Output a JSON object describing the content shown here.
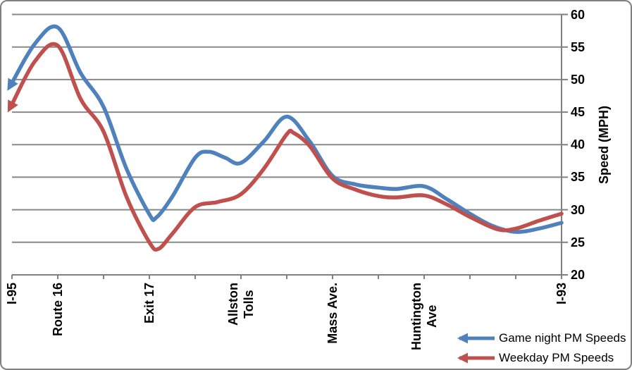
{
  "chart_data": {
    "type": "line",
    "title": "",
    "xlabel": "",
    "ylabel": "Speed (MPH)",
    "ylim": [
      20,
      60
    ],
    "y_ticks": [
      60,
      55,
      50,
      45,
      40,
      35,
      30,
      25,
      20
    ],
    "x_tick_count": 13,
    "x_unit": "tick_index",
    "x_ticks": [
      {
        "pos": 0,
        "label": "I-95"
      },
      {
        "pos": 1,
        "label": "Route 16"
      },
      {
        "pos": 3,
        "label": "Exit 17"
      },
      {
        "pos": 5,
        "label": "Allston\nTolls"
      },
      {
        "pos": 7,
        "label": "Mass Ave."
      },
      {
        "pos": 9,
        "label": "Huntington\nAve"
      },
      {
        "pos": 12,
        "label": "I-93"
      }
    ],
    "grid": "horizontal",
    "legend_position": "bottom-right",
    "line_style": "smooth",
    "arrow_at_line_start": true,
    "series": [
      {
        "name": "Game night PM Speeds",
        "color": "#4F81BD",
        "points": [
          [
            0,
            49.5
          ],
          [
            0.5,
            55.5
          ],
          [
            1,
            58
          ],
          [
            1.5,
            51
          ],
          [
            2,
            45.8
          ],
          [
            2.5,
            36.3
          ],
          [
            3,
            29.3
          ],
          [
            3.15,
            28.8
          ],
          [
            3.5,
            32
          ],
          [
            4,
            38
          ],
          [
            4.3,
            38.9
          ],
          [
            4.65,
            38
          ],
          [
            5,
            37.2
          ],
          [
            5.5,
            40.5
          ],
          [
            6,
            44.3
          ],
          [
            6.5,
            40.5
          ],
          [
            7,
            35.2
          ],
          [
            7.5,
            33.9
          ],
          [
            8,
            33.4
          ],
          [
            8.4,
            33.2
          ],
          [
            9,
            33.6
          ],
          [
            9.5,
            31.6
          ],
          [
            10,
            29.4
          ],
          [
            10.5,
            27.5
          ],
          [
            11,
            26.6
          ],
          [
            11.5,
            27.1
          ],
          [
            12,
            28
          ]
        ]
      },
      {
        "name": "Weekday PM Speeds",
        "color": "#C0504D",
        "points": [
          [
            0,
            46.2
          ],
          [
            0.5,
            52.8
          ],
          [
            1,
            55.2
          ],
          [
            1.5,
            47
          ],
          [
            2,
            42
          ],
          [
            2.5,
            32
          ],
          [
            3,
            25
          ],
          [
            3.2,
            24
          ],
          [
            3.5,
            26.3
          ],
          [
            4,
            30.4
          ],
          [
            4.5,
            31.2
          ],
          [
            5,
            32.4
          ],
          [
            5.5,
            36.3
          ],
          [
            6,
            41.6
          ],
          [
            6.15,
            41.8
          ],
          [
            6.5,
            39.8
          ],
          [
            7,
            34.8
          ],
          [
            7.5,
            33.1
          ],
          [
            8,
            32.1
          ],
          [
            8.4,
            31.9
          ],
          [
            9,
            32.2
          ],
          [
            9.5,
            30.8
          ],
          [
            10,
            28.9
          ],
          [
            10.6,
            27
          ],
          [
            11,
            27.1
          ],
          [
            11.5,
            28.3
          ],
          [
            12,
            29.4
          ]
        ]
      }
    ]
  },
  "colors": {
    "background": "#FFFFFF",
    "border": "#808080",
    "gridline": "#888888",
    "axis": "#808080",
    "label_text": "#000000"
  }
}
